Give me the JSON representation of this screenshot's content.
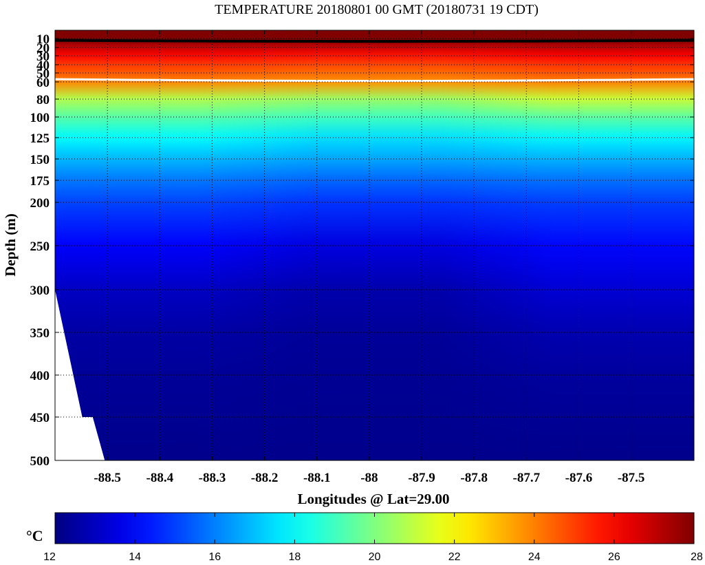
{
  "chart_data": {
    "type": "heatmap",
    "title": "TEMPERATURE 20180801 00 GMT (20180731 19 CDT)",
    "xlabel": "Longitudes @ Lat=29.00",
    "ylabel": "Depth (m)",
    "xlim": [
      -88.6,
      -87.38
    ],
    "x_ticks": [
      -88.5,
      -88.4,
      -88.3,
      -88.2,
      -88.1,
      -88,
      -87.9,
      -87.8,
      -87.7,
      -87.6,
      -87.5
    ],
    "x_tick_labels": [
      "-88.5",
      "-88.4",
      "-88.3",
      "-88.2",
      "-88.1",
      "-88",
      "-87.9",
      "-87.8",
      "-87.7",
      "-87.6",
      "-87.5"
    ],
    "y_ticks": [
      10,
      20,
      30,
      40,
      50,
      60,
      80,
      100,
      125,
      150,
      175,
      200,
      250,
      300,
      350,
      400,
      450,
      500
    ],
    "y_tick_labels": [
      "10",
      "20",
      "30",
      "40",
      "50",
      "60",
      "80",
      "100",
      "125",
      "150",
      "175",
      "200",
      "250",
      "300",
      "350",
      "400",
      "450",
      "500"
    ],
    "y_scale": "piecewise (stretched near surface)",
    "grid": "dotted",
    "colorbar": {
      "unit": "°C",
      "range": [
        12,
        28
      ],
      "ticks": [
        12,
        14,
        16,
        18,
        20,
        22,
        24,
        26,
        28
      ],
      "colormap": "jet"
    },
    "contours": [
      {
        "level": 28,
        "color": "#000000",
        "approx_depth_m": 12
      },
      {
        "level": 24,
        "color": "#ffffff",
        "approx_depth_m": 57
      }
    ],
    "profile": {
      "depths": [
        10,
        12,
        20,
        30,
        40,
        50,
        60,
        80,
        100,
        125,
        150,
        175,
        200,
        250,
        300,
        350,
        400,
        500
      ],
      "west_temps": [
        28.6,
        28.2,
        26.9,
        25.9,
        25.1,
        24.6,
        23.9,
        20.8,
        19.4,
        18.0,
        16.9,
        15.9,
        15.1,
        14.0,
        13.1,
        12.6,
        12.4,
        12.2
      ],
      "center_temps": [
        28.5,
        28.0,
        26.8,
        25.7,
        24.9,
        24.3,
        23.7,
        20.4,
        19.0,
        17.5,
        16.6,
        15.6,
        14.8,
        13.5,
        12.7,
        12.4,
        12.3,
        12.2
      ],
      "east_temps": [
        28.6,
        28.2,
        27.0,
        26.0,
        25.2,
        24.7,
        24.0,
        21.2,
        19.5,
        17.9,
        16.8,
        15.8,
        15.0,
        14.1,
        13.4,
        12.8,
        12.5,
        12.2
      ]
    },
    "seafloor": [
      {
        "lon": -88.6,
        "depth": 300
      },
      {
        "lon": -88.548,
        "depth": 450
      },
      {
        "lon": -88.528,
        "depth": 450
      },
      {
        "lon": -88.505,
        "depth": 500
      }
    ]
  }
}
